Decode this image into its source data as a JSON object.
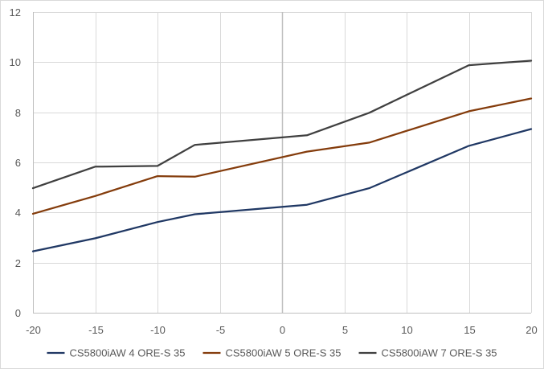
{
  "chart_data": {
    "type": "line",
    "title": "",
    "xlabel": "",
    "ylabel": "",
    "xlim": [
      -20,
      20
    ],
    "ylim": [
      0,
      12
    ],
    "xticks": [
      -20,
      -15,
      -10,
      -5,
      0,
      5,
      10,
      15,
      20
    ],
    "yticks": [
      0,
      2,
      4,
      6,
      8,
      10,
      12
    ],
    "grid": true,
    "legend_position": "bottom",
    "x": [
      -20,
      -15,
      -10,
      -7,
      2,
      7,
      15,
      20
    ],
    "series": [
      {
        "name": "CS5800iAW 4 ORE-S 35",
        "color": "#203864",
        "values": [
          2.45,
          2.97,
          3.62,
          3.93,
          4.31,
          4.97,
          6.66,
          7.33
        ]
      },
      {
        "name": "CS5800iAW 5 ORE-S 35",
        "color": "#843C0C",
        "values": [
          3.95,
          4.66,
          5.45,
          5.43,
          6.43,
          6.79,
          8.04,
          8.55
        ]
      },
      {
        "name": "CS5800iAW 7 ORE-S 35",
        "color": "#404040",
        "values": [
          4.97,
          5.83,
          5.86,
          6.7,
          7.08,
          7.98,
          9.88,
          10.06
        ]
      }
    ]
  }
}
